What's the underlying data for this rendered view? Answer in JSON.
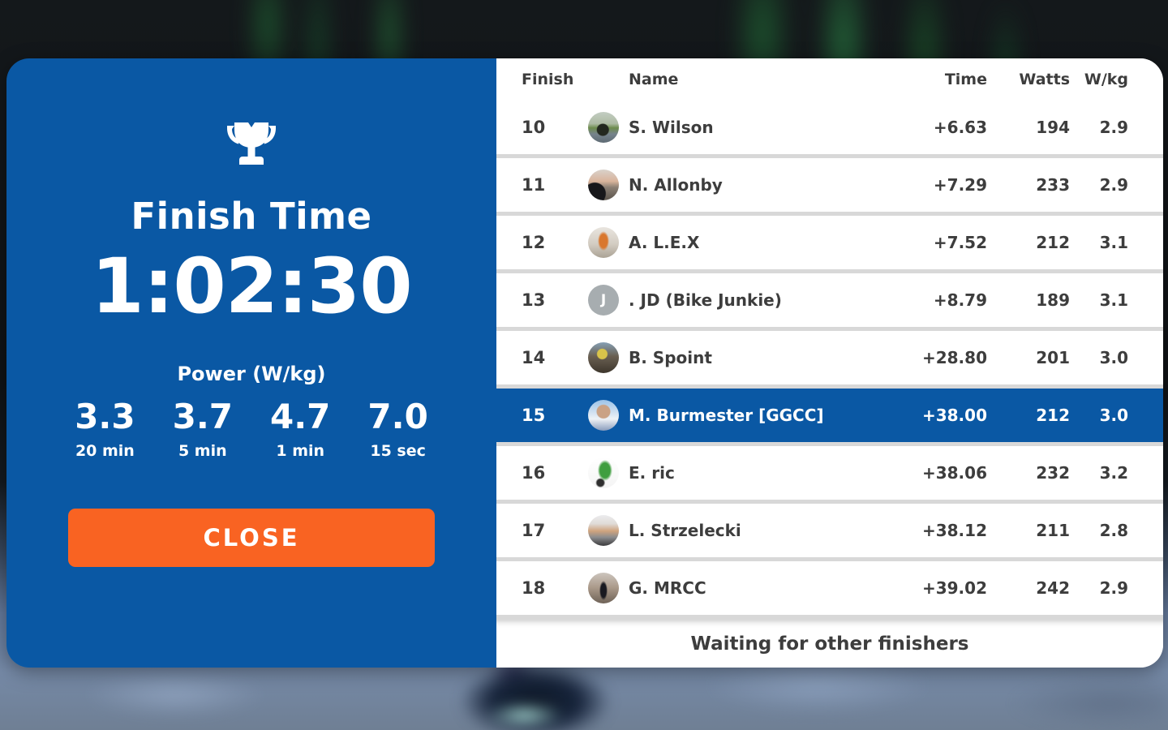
{
  "colors": {
    "blue": "#0a58a4",
    "orange": "#f96322",
    "row_text": "#3d3d3d",
    "divider": "#d8d8d8"
  },
  "panel": {
    "title": "Finish Time",
    "time": "1:02:30",
    "power_title": "Power (W/kg)",
    "power": [
      {
        "value": "3.3",
        "label": "20 min"
      },
      {
        "value": "3.7",
        "label": "5 min"
      },
      {
        "value": "4.7",
        "label": "1 min"
      },
      {
        "value": "7.0",
        "label": "15 sec"
      }
    ],
    "close_label": "CLOSE",
    "trophy_icon": "trophy-icon"
  },
  "table": {
    "headers": {
      "finish": "Finish",
      "name": "Name",
      "time": "Time",
      "watts": "Watts",
      "wkg": "W/kg"
    },
    "rows": [
      {
        "finish": "10",
        "name": "S. Wilson",
        "time": "+6.63",
        "watts": "194",
        "wkg": "2.9",
        "highlighted": false,
        "avatar": {
          "kind": "photo",
          "css": "radial-gradient(circle at 48% 58%, #23281f 0 7px, rgba(35,40,31,0) 8px), linear-gradient(180deg,#c3cdc2 0%,#aebba4 38%,#6d8c4d 52%,#76838c 72%,#5d6a73 100%)"
        }
      },
      {
        "finish": "11",
        "name": "N. Allonby",
        "time": "+7.29",
        "watts": "233",
        "wkg": "2.9",
        "highlighted": false,
        "avatar": {
          "kind": "photo",
          "css": "radial-gradient(circle at 22% 78%, #17171a 0 13px, rgba(23,23,26,0) 14px), linear-gradient(180deg,#d9d2cb 0%,#d9b49c 38%,#8b7f74 58%,#5a534b 100%)"
        }
      },
      {
        "finish": "12",
        "name": "A. L.E.X",
        "time": "+7.52",
        "watts": "212",
        "wkg": "3.1",
        "highlighted": false,
        "avatar": {
          "kind": "photo",
          "css": "radial-gradient(ellipse 7px 12px at 50% 45%, #d9772e 0 70%, rgba(217,119,46,0) 100%), linear-gradient(180deg,#e9e5df 0%,#d3ccc2 55%,#aaa294 100%)"
        }
      },
      {
        "finish": "13",
        "name": ". JD (Bike Junkie)",
        "time": "+8.79",
        "watts": "189",
        "wkg": "3.1",
        "highlighted": false,
        "avatar": {
          "kind": "initial",
          "initial": "J",
          "css": "#a7adb0"
        }
      },
      {
        "finish": "14",
        "name": "B. Spoint",
        "time": "+28.80",
        "watts": "201",
        "wkg": "3.0",
        "highlighted": false,
        "avatar": {
          "kind": "photo",
          "css": "radial-gradient(circle at 46% 38%, #d9c44a 0 6px, rgba(217,196,74,0) 7px), linear-gradient(180deg,#86a0b5 0%,#6a6052 45%,#3d362c 100%)"
        }
      },
      {
        "finish": "15",
        "name": "M. Burmester [GGCC]",
        "time": "+38.00",
        "watts": "212",
        "wkg": "3.0",
        "highlighted": true,
        "avatar": {
          "kind": "photo",
          "css": "radial-gradient(circle at 50% 38%, #caa285 0 8px, rgba(202,162,133,0) 9px), linear-gradient(180deg,#9cc3e8 0%,#d3e2f1 42%,#eef2f6 62%,#8a9cbc 100%)"
        }
      },
      {
        "finish": "16",
        "name": "E. ric",
        "time": "+38.06",
        "watts": "232",
        "wkg": "3.2",
        "highlighted": false,
        "avatar": {
          "kind": "photo",
          "css": "radial-gradient(ellipse 9px 13px at 55% 42%, #3f9e3f 0 70%, rgba(63,158,63,0) 100%), radial-gradient(circle 6px at 40% 82%, #2e2e2e 0 70%, rgba(46,46,46,0) 100%), linear-gradient(180deg,#ffffff 0%,#f4f4f4 100%)"
        }
      },
      {
        "finish": "17",
        "name": "L. Strzelecki",
        "time": "+38.12",
        "watts": "211",
        "wkg": "2.8",
        "highlighted": false,
        "avatar": {
          "kind": "photo",
          "css": "linear-gradient(180deg,#ececee 0%,#e0dcd8 28%,#cfa37e 52%,#8c8c8e 72%,#3a3a3c 100%)"
        }
      },
      {
        "finish": "18",
        "name": "G. MRCC",
        "time": "+39.02",
        "watts": "242",
        "wkg": "2.9",
        "highlighted": false,
        "avatar": {
          "kind": "photo",
          "css": "radial-gradient(ellipse 5px 12px at 50% 58%, #191920 0 70%, rgba(25,25,32,0) 100%), linear-gradient(180deg,#ccc5be 0%,#ab9a8a 48%,#6e6257 100%)"
        }
      }
    ],
    "footer": "Waiting for other finishers"
  }
}
